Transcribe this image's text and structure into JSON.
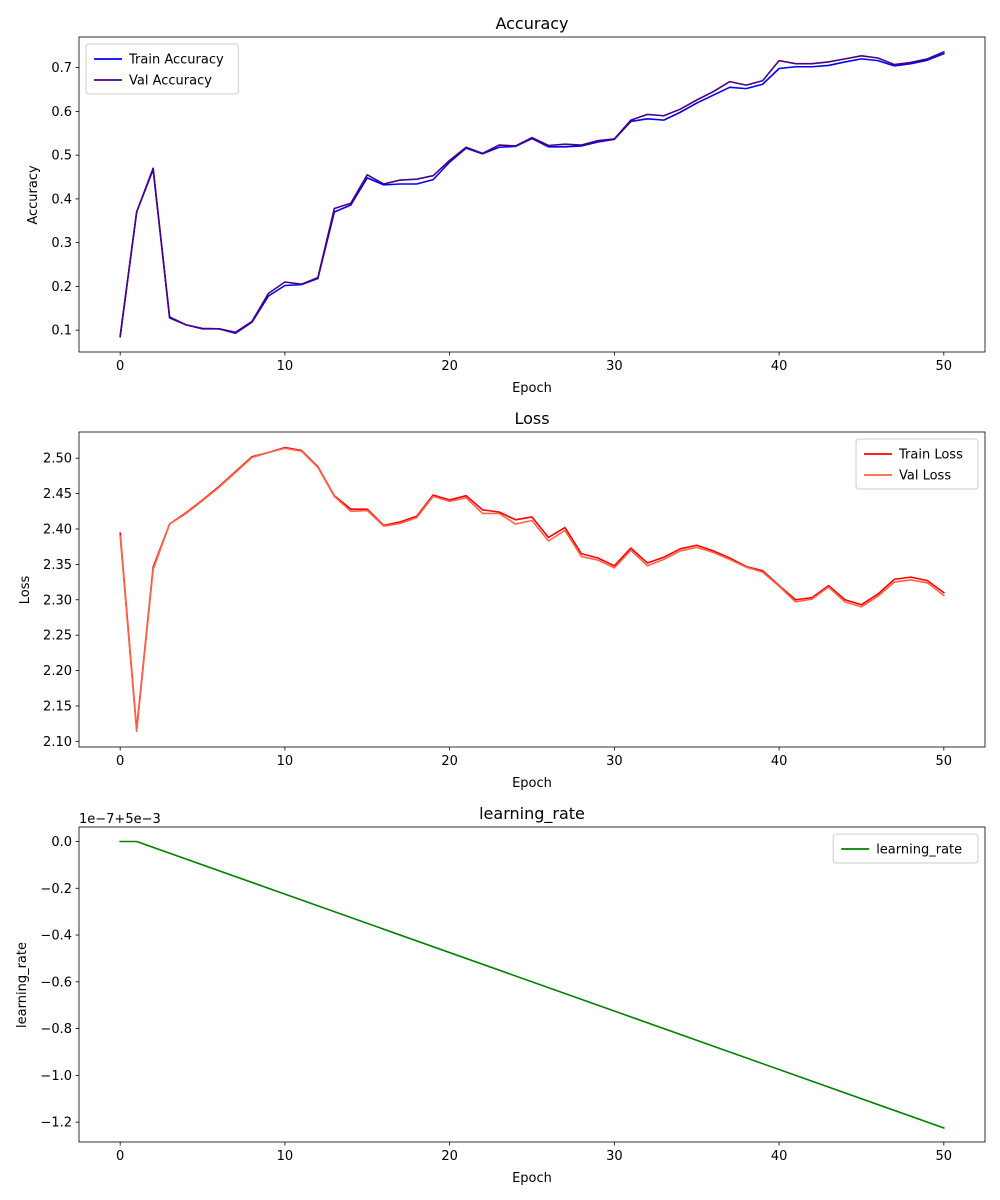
{
  "chart_data": [
    {
      "type": "line",
      "title": "Accuracy",
      "xlabel": "Epoch",
      "ylabel": "Accuracy",
      "xlim": [
        -2.5,
        52.5
      ],
      "ylim": [
        0.05,
        0.77
      ],
      "xticks": [
        0,
        10,
        20,
        30,
        40,
        50
      ],
      "xtick_labels": [
        "0",
        "10",
        "20",
        "30",
        "40",
        "50"
      ],
      "yticks": [
        0.1,
        0.2,
        0.3,
        0.4,
        0.5,
        0.6,
        0.7
      ],
      "ytick_labels": [
        "0.1",
        "0.2",
        "0.3",
        "0.4",
        "0.5",
        "0.6",
        "0.7"
      ],
      "grid": false,
      "legend_position": "upper-left",
      "x": [
        0,
        1,
        2,
        3,
        4,
        5,
        6,
        7,
        8,
        9,
        10,
        11,
        12,
        13,
        14,
        15,
        16,
        17,
        18,
        19,
        20,
        21,
        22,
        23,
        24,
        25,
        26,
        27,
        28,
        29,
        30,
        31,
        32,
        33,
        34,
        35,
        36,
        37,
        38,
        39,
        40,
        41,
        42,
        43,
        44,
        45,
        46,
        47,
        48,
        49,
        50
      ],
      "series": [
        {
          "name": "Train Accuracy",
          "color": "#0000ff",
          "values": [
            0.085,
            0.37,
            0.47,
            0.128,
            0.112,
            0.103,
            0.103,
            0.093,
            0.118,
            0.178,
            0.202,
            0.204,
            0.218,
            0.37,
            0.386,
            0.448,
            0.432,
            0.434,
            0.434,
            0.444,
            0.484,
            0.516,
            0.503,
            0.518,
            0.52,
            0.538,
            0.519,
            0.519,
            0.521,
            0.53,
            0.536,
            0.577,
            0.583,
            0.58,
            0.598,
            0.619,
            0.637,
            0.655,
            0.652,
            0.662,
            0.698,
            0.702,
            0.702,
            0.705,
            0.713,
            0.72,
            0.716,
            0.704,
            0.709,
            0.717,
            0.732
          ]
        },
        {
          "name": "Val Accuracy",
          "color": "#4b0082",
          "values": [
            0.087,
            0.37,
            0.467,
            0.13,
            0.112,
            0.104,
            0.103,
            0.095,
            0.12,
            0.184,
            0.21,
            0.205,
            0.22,
            0.378,
            0.39,
            0.455,
            0.434,
            0.443,
            0.445,
            0.453,
            0.488,
            0.518,
            0.504,
            0.523,
            0.521,
            0.54,
            0.522,
            0.525,
            0.523,
            0.533,
            0.537,
            0.58,
            0.593,
            0.59,
            0.605,
            0.626,
            0.645,
            0.668,
            0.66,
            0.67,
            0.716,
            0.709,
            0.709,
            0.713,
            0.72,
            0.727,
            0.722,
            0.707,
            0.712,
            0.72,
            0.736
          ]
        }
      ]
    },
    {
      "type": "line",
      "title": "Loss",
      "xlabel": "Epoch",
      "ylabel": "Loss",
      "xlim": [
        -2.5,
        52.5
      ],
      "ylim": [
        2.092,
        2.537
      ],
      "xticks": [
        0,
        10,
        20,
        30,
        40,
        50
      ],
      "xtick_labels": [
        "0",
        "10",
        "20",
        "30",
        "40",
        "50"
      ],
      "yticks": [
        2.1,
        2.15,
        2.2,
        2.25,
        2.3,
        2.35,
        2.4,
        2.45,
        2.5
      ],
      "ytick_labels": [
        "2.10",
        "2.15",
        "2.20",
        "2.25",
        "2.30",
        "2.35",
        "2.40",
        "2.45",
        "2.50"
      ],
      "grid": false,
      "legend_position": "upper-right",
      "x": [
        0,
        1,
        2,
        3,
        4,
        5,
        6,
        7,
        8,
        9,
        10,
        11,
        12,
        13,
        14,
        15,
        16,
        17,
        18,
        19,
        20,
        21,
        22,
        23,
        24,
        25,
        26,
        27,
        28,
        29,
        30,
        31,
        32,
        33,
        34,
        35,
        36,
        37,
        38,
        39,
        40,
        41,
        42,
        43,
        44,
        45,
        46,
        47,
        48,
        49,
        50
      ],
      "series": [
        {
          "name": "Train Loss",
          "color": "#ff0000",
          "values": [
            2.394,
            2.117,
            2.346,
            2.407,
            2.423,
            2.441,
            2.46,
            2.481,
            2.502,
            2.508,
            2.515,
            2.511,
            2.488,
            2.447,
            2.428,
            2.428,
            2.405,
            2.41,
            2.418,
            2.448,
            2.441,
            2.447,
            2.427,
            2.424,
            2.413,
            2.417,
            2.388,
            2.402,
            2.365,
            2.359,
            2.348,
            2.373,
            2.352,
            2.36,
            2.372,
            2.377,
            2.369,
            2.359,
            2.347,
            2.341,
            2.32,
            2.3,
            2.303,
            2.32,
            2.3,
            2.293,
            2.308,
            2.329,
            2.332,
            2.327,
            2.31
          ]
        },
        {
          "name": "Val Loss",
          "color": "#ff6347",
          "values": [
            2.39,
            2.114,
            2.343,
            2.407,
            2.422,
            2.44,
            2.459,
            2.48,
            2.501,
            2.508,
            2.514,
            2.51,
            2.487,
            2.446,
            2.425,
            2.426,
            2.404,
            2.408,
            2.416,
            2.446,
            2.439,
            2.444,
            2.422,
            2.422,
            2.407,
            2.412,
            2.383,
            2.398,
            2.361,
            2.356,
            2.345,
            2.37,
            2.348,
            2.357,
            2.369,
            2.374,
            2.367,
            2.357,
            2.346,
            2.339,
            2.319,
            2.297,
            2.301,
            2.318,
            2.297,
            2.29,
            2.305,
            2.325,
            2.328,
            2.324,
            2.306
          ]
        }
      ]
    },
    {
      "type": "line",
      "title": "learning_rate",
      "xlabel": "Epoch",
      "ylabel": "learning_rate",
      "offset_text": "1e−7+5e−3",
      "xlim": [
        -2.5,
        52.5
      ],
      "ylim": [
        -1.285,
        0.062
      ],
      "xticks": [
        0,
        10,
        20,
        30,
        40,
        50
      ],
      "xtick_labels": [
        "0",
        "10",
        "20",
        "30",
        "40",
        "50"
      ],
      "yticks": [
        0.0,
        -0.2,
        -0.4,
        -0.6,
        -0.8,
        -1.0,
        -1.2
      ],
      "ytick_labels": [
        "0.0",
        "−0.2",
        "−0.4",
        "−0.6",
        "−0.8",
        "−1.0",
        "−1.2"
      ],
      "grid": false,
      "legend_position": "upper-right",
      "x": [
        0,
        1,
        50
      ],
      "series": [
        {
          "name": "learning_rate",
          "color": "#008000",
          "values": [
            0.0,
            0.0,
            -1.225
          ]
        }
      ]
    }
  ]
}
